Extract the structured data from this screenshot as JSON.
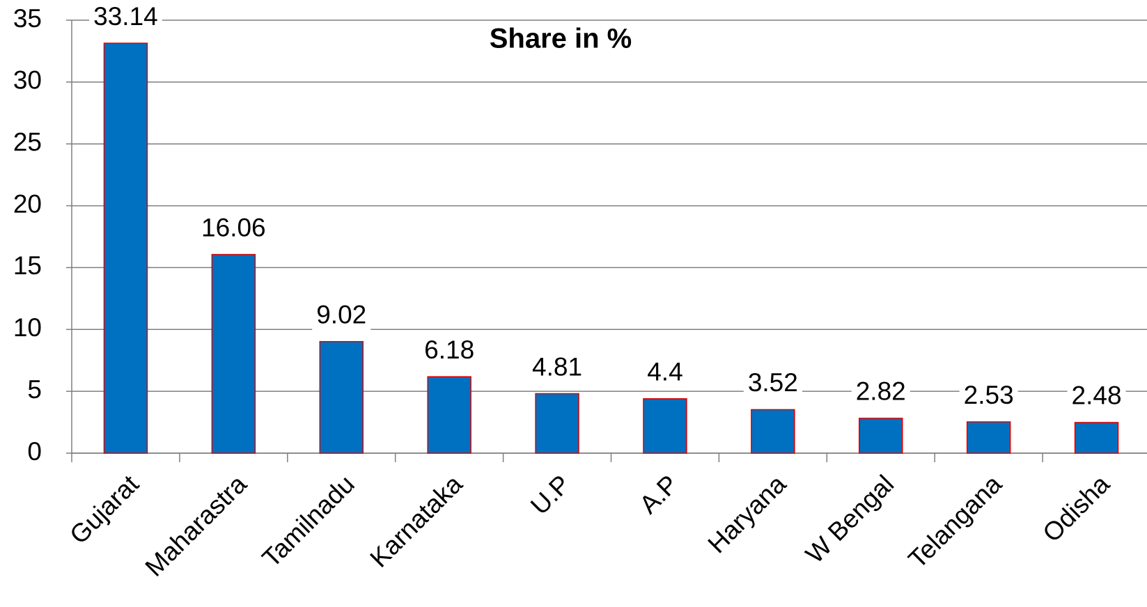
{
  "chart_data": {
    "type": "bar",
    "title": "Share in %",
    "categories": [
      "Gujarat",
      "Maharastra",
      "Tamilnadu",
      "Karnataka",
      "U.P",
      "A.P",
      "Haryana",
      "W Bengal",
      "Telangana",
      "Odisha"
    ],
    "values": [
      33.14,
      16.06,
      9.02,
      6.18,
      4.81,
      4.4,
      3.52,
      2.82,
      2.53,
      2.48
    ],
    "color": "#0070c0",
    "edge_color": "#e00000",
    "ylim": [
      0,
      35
    ],
    "yticks": [
      0,
      5,
      10,
      15,
      20,
      25,
      30,
      35
    ],
    "grid": true
  }
}
